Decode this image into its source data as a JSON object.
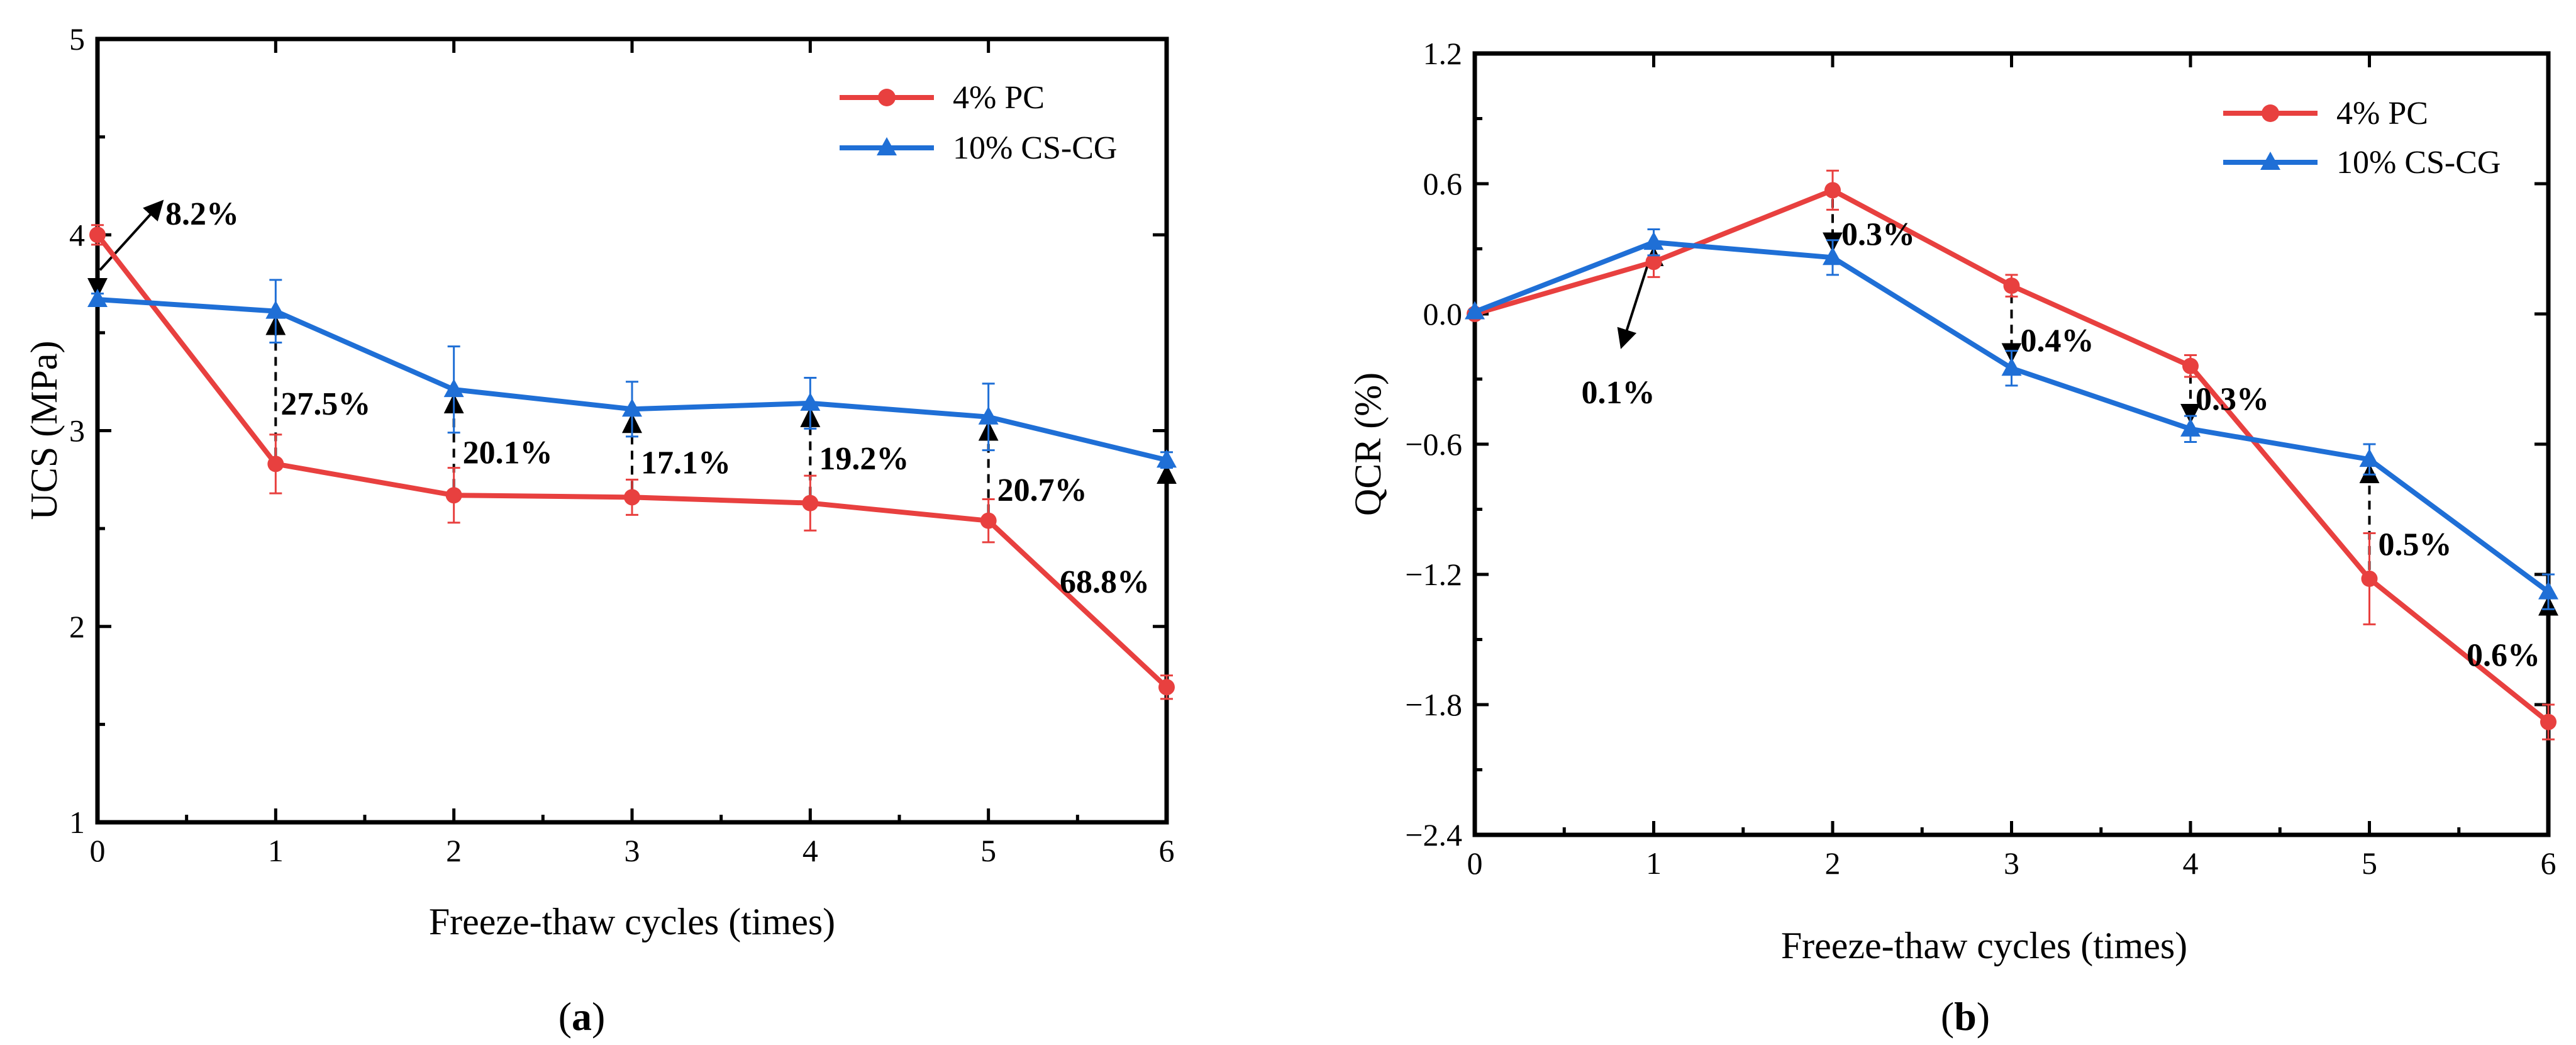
{
  "chart_data": [
    {
      "type": "line",
      "panel_label": "a",
      "xlabel": "Freeze-thaw cycles (times)",
      "ylabel": "UCS (MPa)",
      "x": [
        0,
        1,
        2,
        3,
        4,
        5,
        6
      ],
      "xlim": [
        0,
        6
      ],
      "ylim": [
        1,
        5
      ],
      "xticks": [
        0,
        1,
        2,
        3,
        4,
        5,
        6
      ],
      "yticks": [
        1,
        2,
        3,
        4,
        5
      ],
      "legend_position": "top-right",
      "series": [
        {
          "name": "4% PC",
          "color": "#e8403f",
          "marker": "circle",
          "values": [
            4.0,
            2.83,
            2.67,
            2.66,
            2.63,
            2.54,
            1.69
          ],
          "errors": [
            0.05,
            0.15,
            0.14,
            0.09,
            0.14,
            0.11,
            0.06
          ]
        },
        {
          "name": "10% CS-CG",
          "color": "#1f6fd6",
          "marker": "triangle",
          "values": [
            3.67,
            3.61,
            3.21,
            3.11,
            3.14,
            3.07,
            2.85
          ],
          "errors": [
            0.03,
            0.16,
            0.22,
            0.14,
            0.13,
            0.17,
            0.04
          ]
        }
      ],
      "annotations": [
        {
          "text": "8.2%",
          "x": 0
        },
        {
          "text": "27.5%",
          "x": 1
        },
        {
          "text": "20.1%",
          "x": 2
        },
        {
          "text": "17.1%",
          "x": 3
        },
        {
          "text": "19.2%",
          "x": 4
        },
        {
          "text": "20.7%",
          "x": 5
        },
        {
          "text": "68.8%",
          "x": 6
        }
      ]
    },
    {
      "type": "line",
      "panel_label": "b",
      "xlabel": "Freeze-thaw cycles (times)",
      "ylabel": "QCR (%)",
      "x": [
        0,
        1,
        2,
        3,
        4,
        5,
        6
      ],
      "xlim": [
        0,
        6
      ],
      "ylim": [
        -2.4,
        1.2
      ],
      "xticks": [
        0,
        1,
        2,
        3,
        4,
        5,
        6
      ],
      "yticks": [
        1.2,
        0.6,
        0.0,
        -0.6,
        -1.2,
        -1.8,
        -2.4
      ],
      "ytick_labels": [
        "1.2",
        "0.6",
        "0.0",
        "−0.6",
        "−1.2",
        "−1.8",
        "−2.4"
      ],
      "legend_position": "top-right",
      "series": [
        {
          "name": "4% PC",
          "color": "#e8403f",
          "marker": "circle",
          "values": [
            0.0,
            0.24,
            0.57,
            0.13,
            -0.24,
            -1.22,
            -1.88
          ],
          "errors": [
            0.01,
            0.07,
            0.09,
            0.05,
            0.05,
            0.21,
            0.08
          ]
        },
        {
          "name": "10% CS-CG",
          "color": "#1f6fd6",
          "marker": "triangle",
          "values": [
            0.01,
            0.33,
            0.26,
            -0.25,
            -0.53,
            -0.67,
            -1.28
          ],
          "errors": [
            0.01,
            0.06,
            0.08,
            0.08,
            0.06,
            0.07,
            0.08
          ]
        }
      ],
      "annotations": [
        {
          "text": "0.1%",
          "x": 1
        },
        {
          "text": "0.3%",
          "x": 2
        },
        {
          "text": "0.4%",
          "x": 3
        },
        {
          "text": "0.3%",
          "x": 4
        },
        {
          "text": "0.5%",
          "x": 5
        },
        {
          "text": "0.6%",
          "x": 6
        }
      ]
    }
  ]
}
